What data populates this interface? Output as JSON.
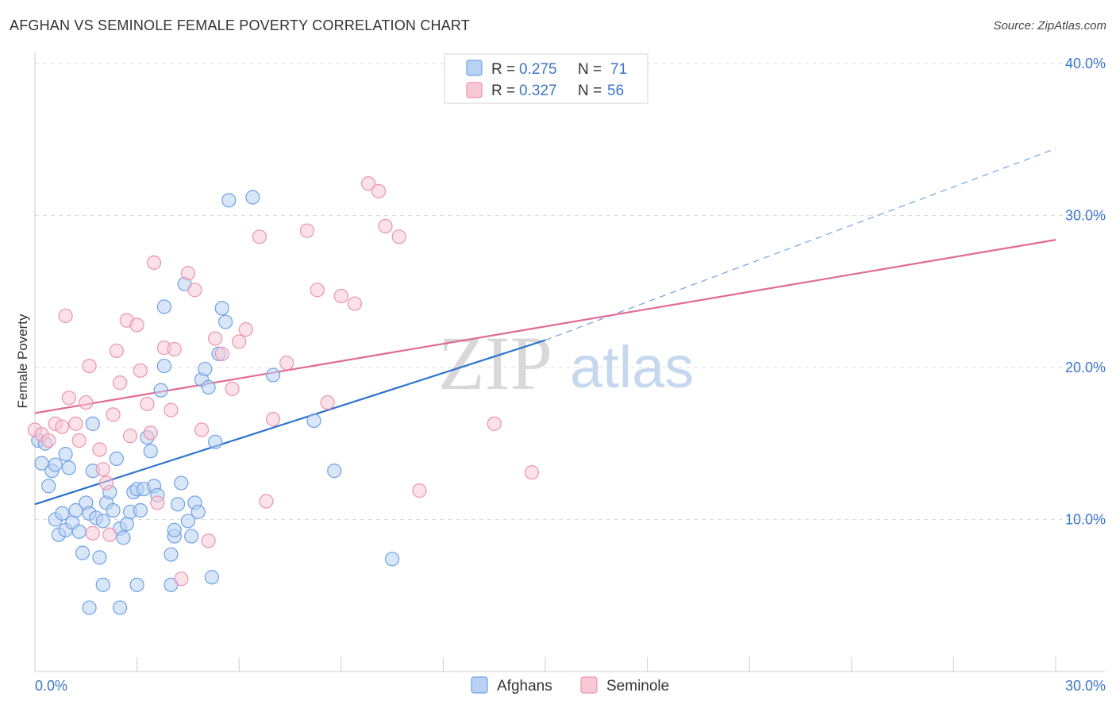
{
  "header": {
    "title": "AFGHAN VS SEMINOLE FEMALE POVERTY CORRELATION CHART",
    "source": "Source: ZipAtlas.com"
  },
  "colors": {
    "afghans": "#6fa2e6",
    "afghans_fill": "#b9d1f3",
    "afghans_line": "#2f72cc",
    "seminole": "#ec94b0",
    "seminole_fill": "#f7c8d6",
    "seminole_line": "#e06a92",
    "tick_text": "#3b76c8",
    "grid": "#dddddd"
  },
  "legend": {
    "afghans": {
      "r_label": "R =",
      "r_value": "0.275",
      "n_label": "N =",
      "n_value": "71"
    },
    "seminole": {
      "r_label": "R =",
      "r_value": "0.327",
      "n_label": "N =",
      "n_value": "56"
    }
  },
  "bottom_legend": {
    "afghans": "Afghans",
    "seminole": "Seminole"
  },
  "watermark": {
    "zip": "ZIP",
    "atlas": "atlas"
  },
  "chart_data": {
    "type": "scatter",
    "ylabel": "Female Poverty",
    "xlim": [
      0,
      30
    ],
    "ylim": [
      0,
      40
    ],
    "x_tick_labels": [
      {
        "value": 0,
        "label": "0.0%"
      },
      {
        "value": 30,
        "label": "30.0%"
      }
    ],
    "y_tick_labels": [
      {
        "value": 10,
        "label": "10.0%"
      },
      {
        "value": 20,
        "label": "20.0%"
      },
      {
        "value": 30,
        "label": "30.0%"
      },
      {
        "value": 40,
        "label": "40.0%"
      }
    ],
    "grid": true,
    "series": [
      {
        "name": "Afghans",
        "r": 0.275,
        "n": 71,
        "trend": {
          "x_start": 0,
          "y_start": 11.0,
          "x_end": 15.0,
          "y_end": 21.8,
          "dashed_to_x": 30.0,
          "dashed_to_y": 34.4
        },
        "points": [
          [
            0.1,
            15.2
          ],
          [
            0.2,
            13.7
          ],
          [
            0.3,
            15.0
          ],
          [
            0.4,
            12.2
          ],
          [
            0.5,
            13.2
          ],
          [
            0.6,
            13.6
          ],
          [
            0.6,
            10.0
          ],
          [
            0.7,
            9.0
          ],
          [
            0.8,
            10.4
          ],
          [
            0.9,
            9.3
          ],
          [
            0.9,
            14.3
          ],
          [
            1.0,
            13.4
          ],
          [
            1.1,
            9.8
          ],
          [
            1.2,
            10.6
          ],
          [
            1.3,
            9.2
          ],
          [
            1.4,
            7.8
          ],
          [
            1.5,
            11.1
          ],
          [
            1.6,
            10.4
          ],
          [
            1.7,
            13.2
          ],
          [
            1.7,
            16.3
          ],
          [
            1.8,
            10.1
          ],
          [
            1.9,
            7.5
          ],
          [
            2.0,
            9.9
          ],
          [
            2.1,
            11.1
          ],
          [
            2.2,
            11.8
          ],
          [
            2.3,
            10.6
          ],
          [
            2.4,
            14.0
          ],
          [
            2.5,
            9.4
          ],
          [
            2.6,
            8.8
          ],
          [
            2.7,
            9.7
          ],
          [
            2.8,
            10.5
          ],
          [
            2.9,
            11.8
          ],
          [
            3.0,
            12.0
          ],
          [
            3.1,
            10.6
          ],
          [
            3.2,
            12.0
          ],
          [
            3.3,
            15.4
          ],
          [
            3.4,
            14.5
          ],
          [
            3.5,
            12.2
          ],
          [
            3.6,
            11.6
          ],
          [
            3.7,
            18.5
          ],
          [
            3.8,
            20.1
          ],
          [
            3.8,
            24.0
          ],
          [
            4.0,
            7.7
          ],
          [
            4.1,
            8.9
          ],
          [
            4.1,
            9.3
          ],
          [
            4.2,
            11.0
          ],
          [
            4.3,
            12.4
          ],
          [
            4.4,
            25.5
          ],
          [
            4.5,
            9.9
          ],
          [
            4.6,
            8.9
          ],
          [
            4.7,
            11.1
          ],
          [
            4.8,
            10.5
          ],
          [
            4.9,
            19.2
          ],
          [
            5.0,
            19.9
          ],
          [
            5.1,
            18.7
          ],
          [
            5.2,
            6.2
          ],
          [
            5.3,
            15.1
          ],
          [
            5.4,
            20.9
          ],
          [
            5.5,
            23.9
          ],
          [
            5.6,
            23.0
          ],
          [
            2.0,
            5.7
          ],
          [
            3.0,
            5.7
          ],
          [
            4.0,
            5.7
          ],
          [
            1.6,
            4.2
          ],
          [
            2.5,
            4.2
          ],
          [
            5.7,
            31.0
          ],
          [
            6.4,
            31.2
          ],
          [
            7.0,
            19.5
          ],
          [
            8.2,
            16.5
          ],
          [
            8.8,
            13.2
          ],
          [
            10.5,
            7.4
          ]
        ]
      },
      {
        "name": "Seminole",
        "r": 0.327,
        "n": 56,
        "trend": {
          "x_start": 0,
          "y_start": 17.0,
          "x_end": 30.0,
          "y_end": 28.4
        },
        "points": [
          [
            0.0,
            15.9
          ],
          [
            0.2,
            15.6
          ],
          [
            0.4,
            15.2
          ],
          [
            0.6,
            16.3
          ],
          [
            0.8,
            16.1
          ],
          [
            0.9,
            23.4
          ],
          [
            1.0,
            18.0
          ],
          [
            1.2,
            16.3
          ],
          [
            1.3,
            15.2
          ],
          [
            1.5,
            17.7
          ],
          [
            1.6,
            20.1
          ],
          [
            1.7,
            9.1
          ],
          [
            1.9,
            14.6
          ],
          [
            2.0,
            13.3
          ],
          [
            2.1,
            12.4
          ],
          [
            2.2,
            9.0
          ],
          [
            2.3,
            16.9
          ],
          [
            2.4,
            21.1
          ],
          [
            2.5,
            19.0
          ],
          [
            2.7,
            23.1
          ],
          [
            2.8,
            15.5
          ],
          [
            3.0,
            22.8
          ],
          [
            3.1,
            19.8
          ],
          [
            3.3,
            17.6
          ],
          [
            3.4,
            15.7
          ],
          [
            3.5,
            26.9
          ],
          [
            3.6,
            11.1
          ],
          [
            3.8,
            21.3
          ],
          [
            4.0,
            17.2
          ],
          [
            4.1,
            21.2
          ],
          [
            4.3,
            6.1
          ],
          [
            4.5,
            26.2
          ],
          [
            4.7,
            25.1
          ],
          [
            4.9,
            15.9
          ],
          [
            5.1,
            8.6
          ],
          [
            5.3,
            21.9
          ],
          [
            5.5,
            20.9
          ],
          [
            5.8,
            18.6
          ],
          [
            6.0,
            21.7
          ],
          [
            6.2,
            22.5
          ],
          [
            6.6,
            28.6
          ],
          [
            6.8,
            11.2
          ],
          [
            7.0,
            16.6
          ],
          [
            7.4,
            20.3
          ],
          [
            8.0,
            29.0
          ],
          [
            8.3,
            25.1
          ],
          [
            8.6,
            17.7
          ],
          [
            9.0,
            24.7
          ],
          [
            9.4,
            24.2
          ],
          [
            9.8,
            32.1
          ],
          [
            10.1,
            31.6
          ],
          [
            10.3,
            29.3
          ],
          [
            10.7,
            28.6
          ],
          [
            11.3,
            11.9
          ],
          [
            13.5,
            16.3
          ],
          [
            14.6,
            13.1
          ]
        ]
      }
    ]
  }
}
